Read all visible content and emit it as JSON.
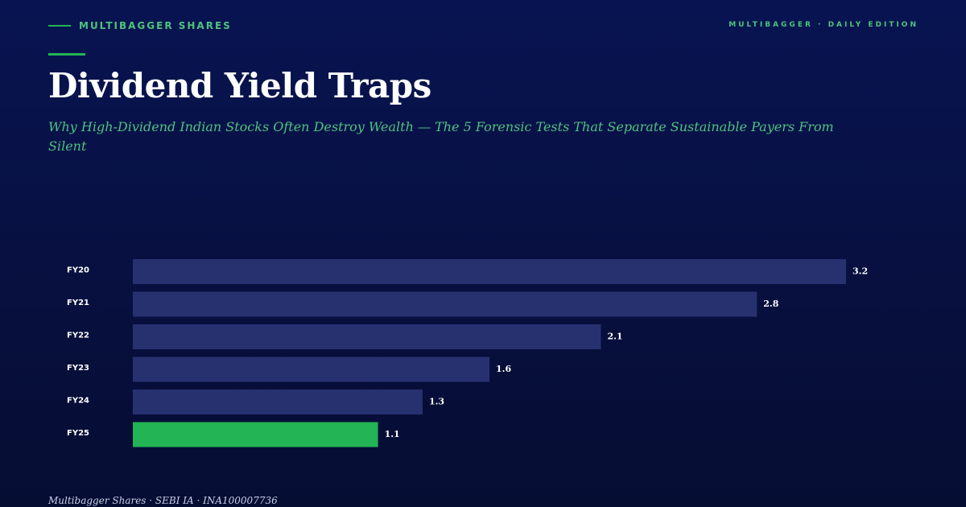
{
  "header": {
    "brand": "MULTIBAGGER SHARES",
    "edition": "MULTIBAGGER · DAILY EDITION"
  },
  "article": {
    "title": "Dividend Yield Traps",
    "subtitle": "Why High-Dividend Indian Stocks Often Destroy Wealth — The 5 Forensic Tests That Separate Sustainable Payers From Silent"
  },
  "chart_data": {
    "type": "bar",
    "orientation": "horizontal",
    "categories": [
      "FY20",
      "FY21",
      "FY22",
      "FY23",
      "FY24",
      "FY25"
    ],
    "values": [
      3.2,
      2.8,
      2.1,
      1.6,
      1.3,
      1.1
    ],
    "data_labels": [
      "3.2",
      "2.8",
      "2.1",
      "1.6",
      "1.3",
      "1.1"
    ],
    "title": "",
    "xlabel": "",
    "ylabel": "",
    "xlim": [
      0,
      3.2
    ],
    "grid": false,
    "legend": "none",
    "colors": {
      "bar": "#283170",
      "highlight": "#22b455",
      "label": "#ffffff"
    },
    "highlight_index": 5
  },
  "footer": {
    "text": "Multibagger Shares · SEBI IA · INA100007736"
  }
}
